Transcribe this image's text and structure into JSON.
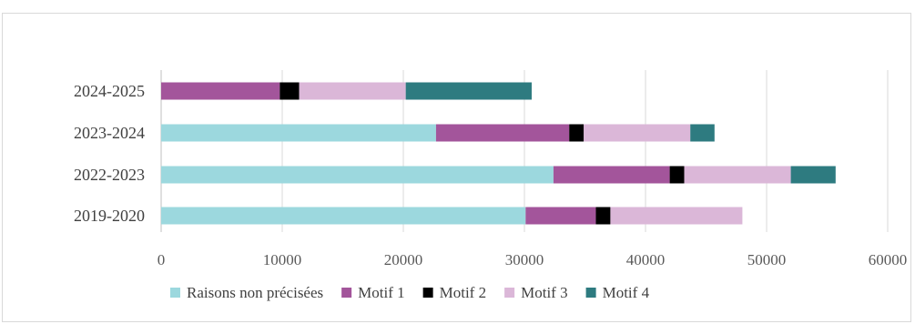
{
  "chart_data": {
    "type": "bar",
    "orientation": "horizontal",
    "stacked": true,
    "categories": [
      "2024-2025",
      "2023-2024",
      "2022-2023",
      "2019-2020"
    ],
    "series": [
      {
        "name": "Raisons non précisées",
        "color": "#9cd8de",
        "values": [
          0,
          22700,
          32400,
          30100
        ]
      },
      {
        "name": "Motif 1",
        "color": "#a3559b",
        "values": [
          9800,
          11000,
          9600,
          5800
        ]
      },
      {
        "name": "Motif 2",
        "color": "#000000",
        "values": [
          1600,
          1200,
          1200,
          1200
        ]
      },
      {
        "name": "Motif 3",
        "color": "#dbb7d8",
        "values": [
          8800,
          8800,
          8800,
          10900
        ]
      },
      {
        "name": "Motif 4",
        "color": "#2e7b80",
        "values": [
          10400,
          2000,
          3700,
          0
        ]
      }
    ],
    "xlim": [
      0,
      60000
    ],
    "xticks": [
      "0",
      "10000",
      "20000",
      "30000",
      "40000",
      "50000",
      "60000"
    ],
    "grid": true,
    "legend_position": "bottom"
  }
}
